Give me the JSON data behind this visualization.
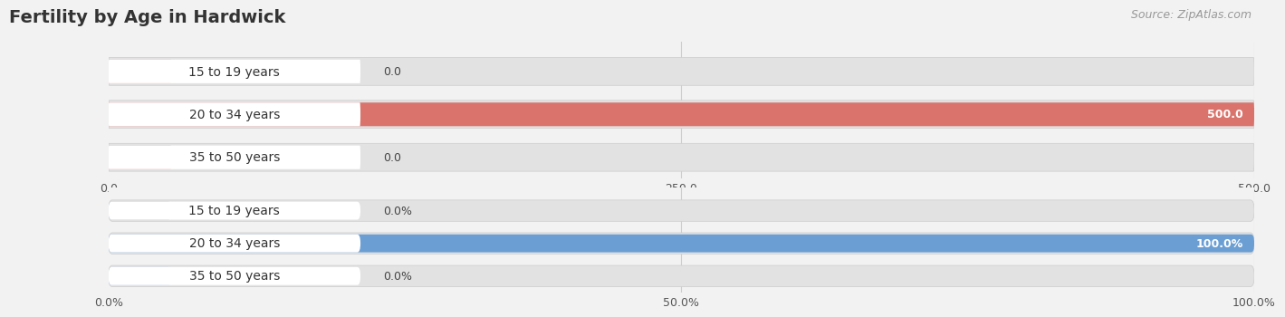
{
  "title": "Fertility by Age in Hardwick",
  "source": "Source: ZipAtlas.com",
  "fig_bg_color": "#f2f2f2",
  "top_chart": {
    "categories": [
      "15 to 19 years",
      "20 to 34 years",
      "35 to 50 years"
    ],
    "values": [
      0.0,
      500.0,
      0.0
    ],
    "bar_color_full": "#d9736b",
    "bar_color_stub": "#e8a09a",
    "track_color": "#e2e2e2",
    "xlim": [
      0,
      500
    ],
    "xticks": [
      0.0,
      250.0,
      500.0
    ],
    "xtick_labels": [
      "0.0",
      "250.0",
      "500.0"
    ]
  },
  "bottom_chart": {
    "categories": [
      "15 to 19 years",
      "20 to 34 years",
      "35 to 50 years"
    ],
    "values": [
      0.0,
      100.0,
      0.0
    ],
    "bar_color_full": "#6b9fd4",
    "bar_color_stub": "#a8c8e8",
    "track_color": "#e2e2e2",
    "xlim": [
      0,
      100
    ],
    "xticks": [
      0.0,
      50.0,
      100.0
    ],
    "xtick_labels": [
      "0.0%",
      "50.0%",
      "100.0%"
    ]
  },
  "label_fontsize": 10,
  "value_fontsize": 9,
  "tick_fontsize": 9,
  "title_fontsize": 14,
  "source_fontsize": 9
}
